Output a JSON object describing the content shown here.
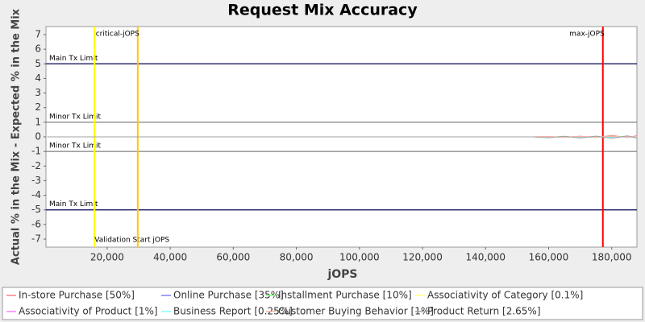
{
  "chart_data": {
    "type": "line",
    "title": "Request Mix Accuracy",
    "x_label": "jOPS",
    "y_label": "Actual % in the Mix - Expected % in the Mix",
    "xlim": [
      600,
      188000
    ],
    "ylim": [
      -7.55,
      7.55
    ],
    "xticks": [
      {
        "value": 20000,
        "label": "20,000"
      },
      {
        "value": 40000,
        "label": "40,000"
      },
      {
        "value": 60000,
        "label": "60,000"
      },
      {
        "value": 80000,
        "label": "80,000"
      },
      {
        "value": 100000,
        "label": "100,000"
      },
      {
        "value": 120000,
        "label": "120,000"
      },
      {
        "value": 140000,
        "label": "140,000"
      },
      {
        "value": 160000,
        "label": "160,000"
      },
      {
        "value": 180000,
        "label": "180,000"
      }
    ],
    "yticks": [
      -7,
      -6,
      -5,
      -4,
      -3,
      -2,
      -1,
      0,
      1,
      2,
      3,
      4,
      5,
      6,
      7
    ],
    "reference_lines": [
      {
        "value": 5,
        "label": "Main Tx Limit",
        "color": "#000050"
      },
      {
        "value": 1,
        "label": "Minor Tx Limit",
        "color": "#808080"
      },
      {
        "value": -1,
        "label": "Minor Tx Limit",
        "color": "#808080"
      },
      {
        "value": -5,
        "label": "Main Tx Limit",
        "color": "#000050"
      }
    ],
    "vertical_markers": [
      {
        "value": 16000,
        "label": "Validation Start jOPS",
        "color": "#ffff00"
      },
      {
        "value": 29700,
        "label": "critical-jOPS",
        "color": "#ffc800"
      },
      {
        "value": 177200,
        "label": "max-jOPS",
        "color": "#ff0000"
      }
    ],
    "x": [
      1000,
      40000,
      80000,
      120000,
      155000,
      160000,
      165000,
      170000,
      175000,
      180000,
      185000,
      188000
    ],
    "series": [
      {
        "name": "In-store Purchase [50%]",
        "color": "#ff8080",
        "values": [
          0,
          0,
          0,
          0,
          0,
          0.02,
          -0.03,
          0.05,
          -0.04,
          0.1,
          -0.05,
          0.08
        ]
      },
      {
        "name": "Online Purchase [35%]",
        "color": "#8080ff",
        "values": [
          0,
          0,
          0,
          0,
          0,
          -0.02,
          0.03,
          -0.05,
          0.04,
          -0.08,
          0.05,
          -0.06
        ]
      },
      {
        "name": "Installment Purchase [10%]",
        "color": "#80ff80",
        "values": [
          0,
          0,
          0,
          0,
          0,
          0.01,
          -0.02,
          0.02,
          -0.03,
          0.05,
          -0.04,
          0.03
        ]
      },
      {
        "name": "Associativity of Category [0.1%]",
        "color": "#ffff80",
        "values": [
          0,
          0,
          0,
          0,
          0,
          0,
          0.01,
          0,
          -0.01,
          0.02,
          0,
          0.01
        ]
      },
      {
        "name": "Associativity of Product [1%]",
        "color": "#ff80ff",
        "values": [
          0,
          0,
          0,
          0,
          0,
          0.01,
          -0.01,
          0.02,
          0,
          -0.02,
          0.03,
          0
        ]
      },
      {
        "name": "Business Report [0.25%]",
        "color": "#80ffff",
        "values": [
          0,
          0,
          0,
          0,
          0,
          -0.01,
          0.02,
          -0.02,
          0.03,
          -0.04,
          0.06,
          -0.05
        ]
      },
      {
        "name": "Customer Buying Behavior [1%]",
        "color": "#ffb0a0",
        "values": [
          0,
          0,
          0,
          0,
          0,
          0.02,
          -0.02,
          0.03,
          -0.02,
          0.04,
          -0.03,
          0.02
        ]
      },
      {
        "name": "Product Return [2.65%]",
        "color": "#a0a0a0",
        "values": [
          0,
          0,
          0,
          0,
          0,
          -0.06,
          0.04,
          -0.08,
          0.05,
          -0.1,
          0.07,
          -0.09
        ]
      }
    ]
  }
}
